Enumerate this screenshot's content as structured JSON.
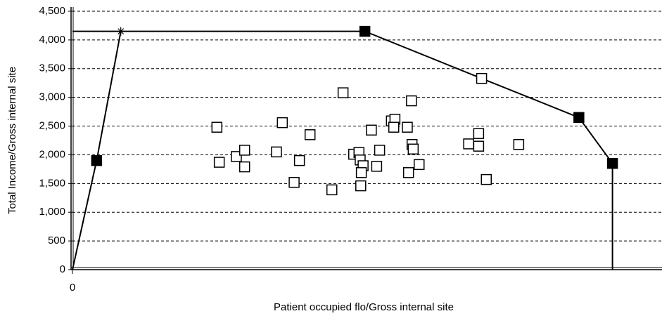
{
  "chart_data": {
    "type": "scatter",
    "x_label": "Patient occupied flo/Gross internal site",
    "y_label": "Total Income/Gross internal site",
    "xlim": [
      0,
      1
    ],
    "xticks": [
      0
    ],
    "ylim": [
      0,
      4500
    ],
    "yticks": [
      0,
      500,
      {
        "value": 1000,
        "label": "1,000"
      },
      {
        "value": 1500,
        "label": "1,500"
      },
      {
        "value": 2000,
        "label": "2,000"
      },
      {
        "value": 2500,
        "label": "2,500"
      },
      {
        "value": 3000,
        "label": "3,000"
      },
      {
        "value": 3500,
        "label": "3,500"
      },
      {
        "value": 4000,
        "label": "4,000"
      },
      {
        "value": 4500,
        "label": "4,500"
      }
    ],
    "grid": true,
    "series": [
      {
        "type": "line",
        "color": "#000000",
        "x": [
          0,
          0.041,
          0.082,
          0.496,
          0.694,
          0.859,
          0.916,
          0.916
        ],
        "values": [
          0,
          1900,
          4150,
          4150,
          3330,
          2650,
          1850,
          0
        ],
        "markers": [
          "none",
          "square-filled",
          "star",
          "square-filled",
          "square-open",
          "square-filled",
          "square-filled",
          "none"
        ]
      },
      {
        "type": "line",
        "color": "#000000",
        "x": [
          0,
          0.082
        ],
        "values": [
          4150,
          4150
        ],
        "markers": [
          "none",
          "none"
        ]
      },
      {
        "type": "scatter",
        "color": "#000000",
        "x": [
          0.245,
          0.249,
          0.278,
          0.292,
          0.292,
          0.346,
          0.356,
          0.385,
          0.376,
          0.403,
          0.44,
          0.459,
          0.477,
          0.486,
          0.488,
          0.493,
          0.49,
          0.489,
          0.507,
          0.516,
          0.521,
          0.541,
          0.547,
          0.545,
          0.568,
          0.575,
          0.576,
          0.578,
          0.57,
          0.588,
          0.672,
          0.689,
          0.689,
          0.702,
          0.757
        ],
        "values": [
          2480,
          1870,
          1970,
          2080,
          1790,
          2050,
          2560,
          1900,
          1520,
          2350,
          1390,
          3080,
          2010,
          2040,
          1910,
          1810,
          1690,
          1460,
          2430,
          1800,
          2080,
          2590,
          2620,
          2480,
          2480,
          2940,
          2180,
          2100,
          1690,
          1830,
          2190,
          2370,
          2150,
          1570,
          2180
        ]
      }
    ]
  }
}
